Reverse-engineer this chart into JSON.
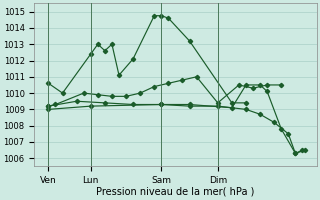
{
  "title": "Pression niveau de la mer( hPa )",
  "ylabel_ticks": [
    1006,
    1007,
    1008,
    1009,
    1010,
    1011,
    1012,
    1013,
    1014,
    1015
  ],
  "ylim": [
    1005.5,
    1015.5
  ],
  "background_color": "#ceeae2",
  "grid_color": "#aacfc7",
  "line_color": "#1a5c2a",
  "vline_color": "#3a7a4a",
  "xtick_positions": [
    1,
    4,
    9,
    13
  ],
  "xtick_labels": [
    "Ven",
    "Lun",
    "Sam",
    "Dim"
  ],
  "xlim": [
    0,
    20
  ],
  "line1": {
    "x": [
      1,
      2,
      4,
      4.5,
      5,
      5.5,
      6,
      7,
      8.5,
      9,
      9.5,
      11,
      14,
      15
    ],
    "y": [
      1010.6,
      1010.0,
      1012.4,
      1013.0,
      1012.6,
      1013.0,
      1011.1,
      1012.1,
      1014.75,
      1014.75,
      1014.6,
      1013.2,
      1009.4,
      1009.4
    ]
  },
  "line2": {
    "x": [
      1,
      1.5,
      3.5,
      4.5,
      5.5,
      6.5,
      7.5,
      8.5,
      9.5,
      10.5,
      11.5,
      13,
      14.5,
      15.5,
      16.5,
      17.5
    ],
    "y": [
      1009.2,
      1009.3,
      1010.0,
      1009.9,
      1009.8,
      1009.8,
      1010.0,
      1010.4,
      1010.6,
      1010.8,
      1011.0,
      1009.4,
      1010.5,
      1010.3,
      1010.5,
      1010.5
    ]
  },
  "line3": {
    "x": [
      1,
      3,
      5,
      7,
      9,
      11,
      13,
      15,
      16,
      17,
      18,
      18.5,
      19
    ],
    "y": [
      1009.2,
      1009.5,
      1009.4,
      1009.3,
      1009.3,
      1009.2,
      1009.2,
      1009.0,
      1008.7,
      1008.2,
      1007.5,
      1006.3,
      1006.5
    ]
  },
  "line4": {
    "x": [
      1,
      4,
      9,
      11,
      14,
      15,
      16,
      16.5,
      17.5,
      18.5,
      19.2
    ],
    "y": [
      1009.0,
      1009.2,
      1009.3,
      1009.3,
      1009.1,
      1010.5,
      1010.5,
      1010.1,
      1007.8,
      1006.3,
      1006.5
    ]
  },
  "vlines": [
    1,
    4,
    9,
    13
  ]
}
